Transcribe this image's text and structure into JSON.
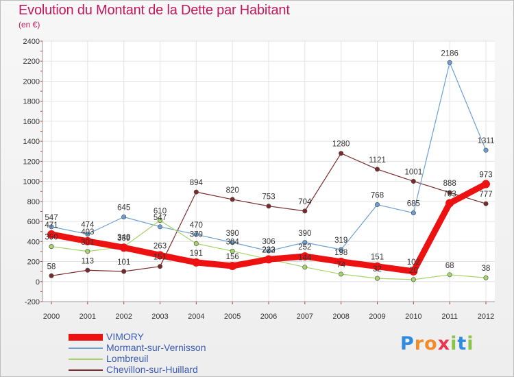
{
  "header": {
    "title": "Evolution du Montant de la Dette par Habitant",
    "subtitle": "(en €)"
  },
  "logo": {
    "letters": [
      "P",
      "r",
      "o",
      "x",
      "i",
      "t",
      "i"
    ],
    "colors": [
      "#2e8be0",
      "#f28c28",
      "#f28c28",
      "#e8384f",
      "#8bc34a",
      "#2e8be0",
      "#8bc34a"
    ]
  },
  "chart_data": {
    "type": "line",
    "title": "Evolution du Montant de la Dette par Habitant",
    "subtitle": "(en €)",
    "xlabel": "",
    "ylabel": "",
    "x": [
      "2000",
      "2001",
      "2002",
      "2003",
      "2004",
      "2005",
      "2006",
      "2007",
      "2008",
      "2009",
      "2010",
      "2011",
      "2012"
    ],
    "ylim": [
      -200,
      2400
    ],
    "yticks": [
      -200,
      0,
      200,
      400,
      600,
      800,
      1000,
      1200,
      1400,
      1600,
      1800,
      2000,
      2200,
      2400
    ],
    "grid": true,
    "legend_position": "bottom-left",
    "series": [
      {
        "name": "VIMORY",
        "color": "#ee1111",
        "values": [
          471,
          403,
          339,
          263,
          191,
          156,
          222,
          252,
          198,
          151,
          102,
          783,
          973
        ]
      },
      {
        "name": "Mormant-sur-Vernisson",
        "color": "#6b9fd4",
        "values": [
          547,
          474,
          645,
          547,
          470,
          390,
          306,
          390,
          319,
          768,
          685,
          2186,
          1311
        ]
      },
      {
        "name": "Lombreuil",
        "color": "#a5d46a",
        "values": [
          350,
          301,
          348,
          610,
          379,
          304,
          223,
          144,
          74,
          32,
          20,
          68,
          38
        ]
      },
      {
        "name": "Chevillon-sur-Huillard",
        "color": "#7a2a2a",
        "values": [
          58,
          113,
          101,
          151,
          894,
          820,
          753,
          704,
          1280,
          1121,
          1001,
          888,
          777
        ]
      }
    ]
  }
}
